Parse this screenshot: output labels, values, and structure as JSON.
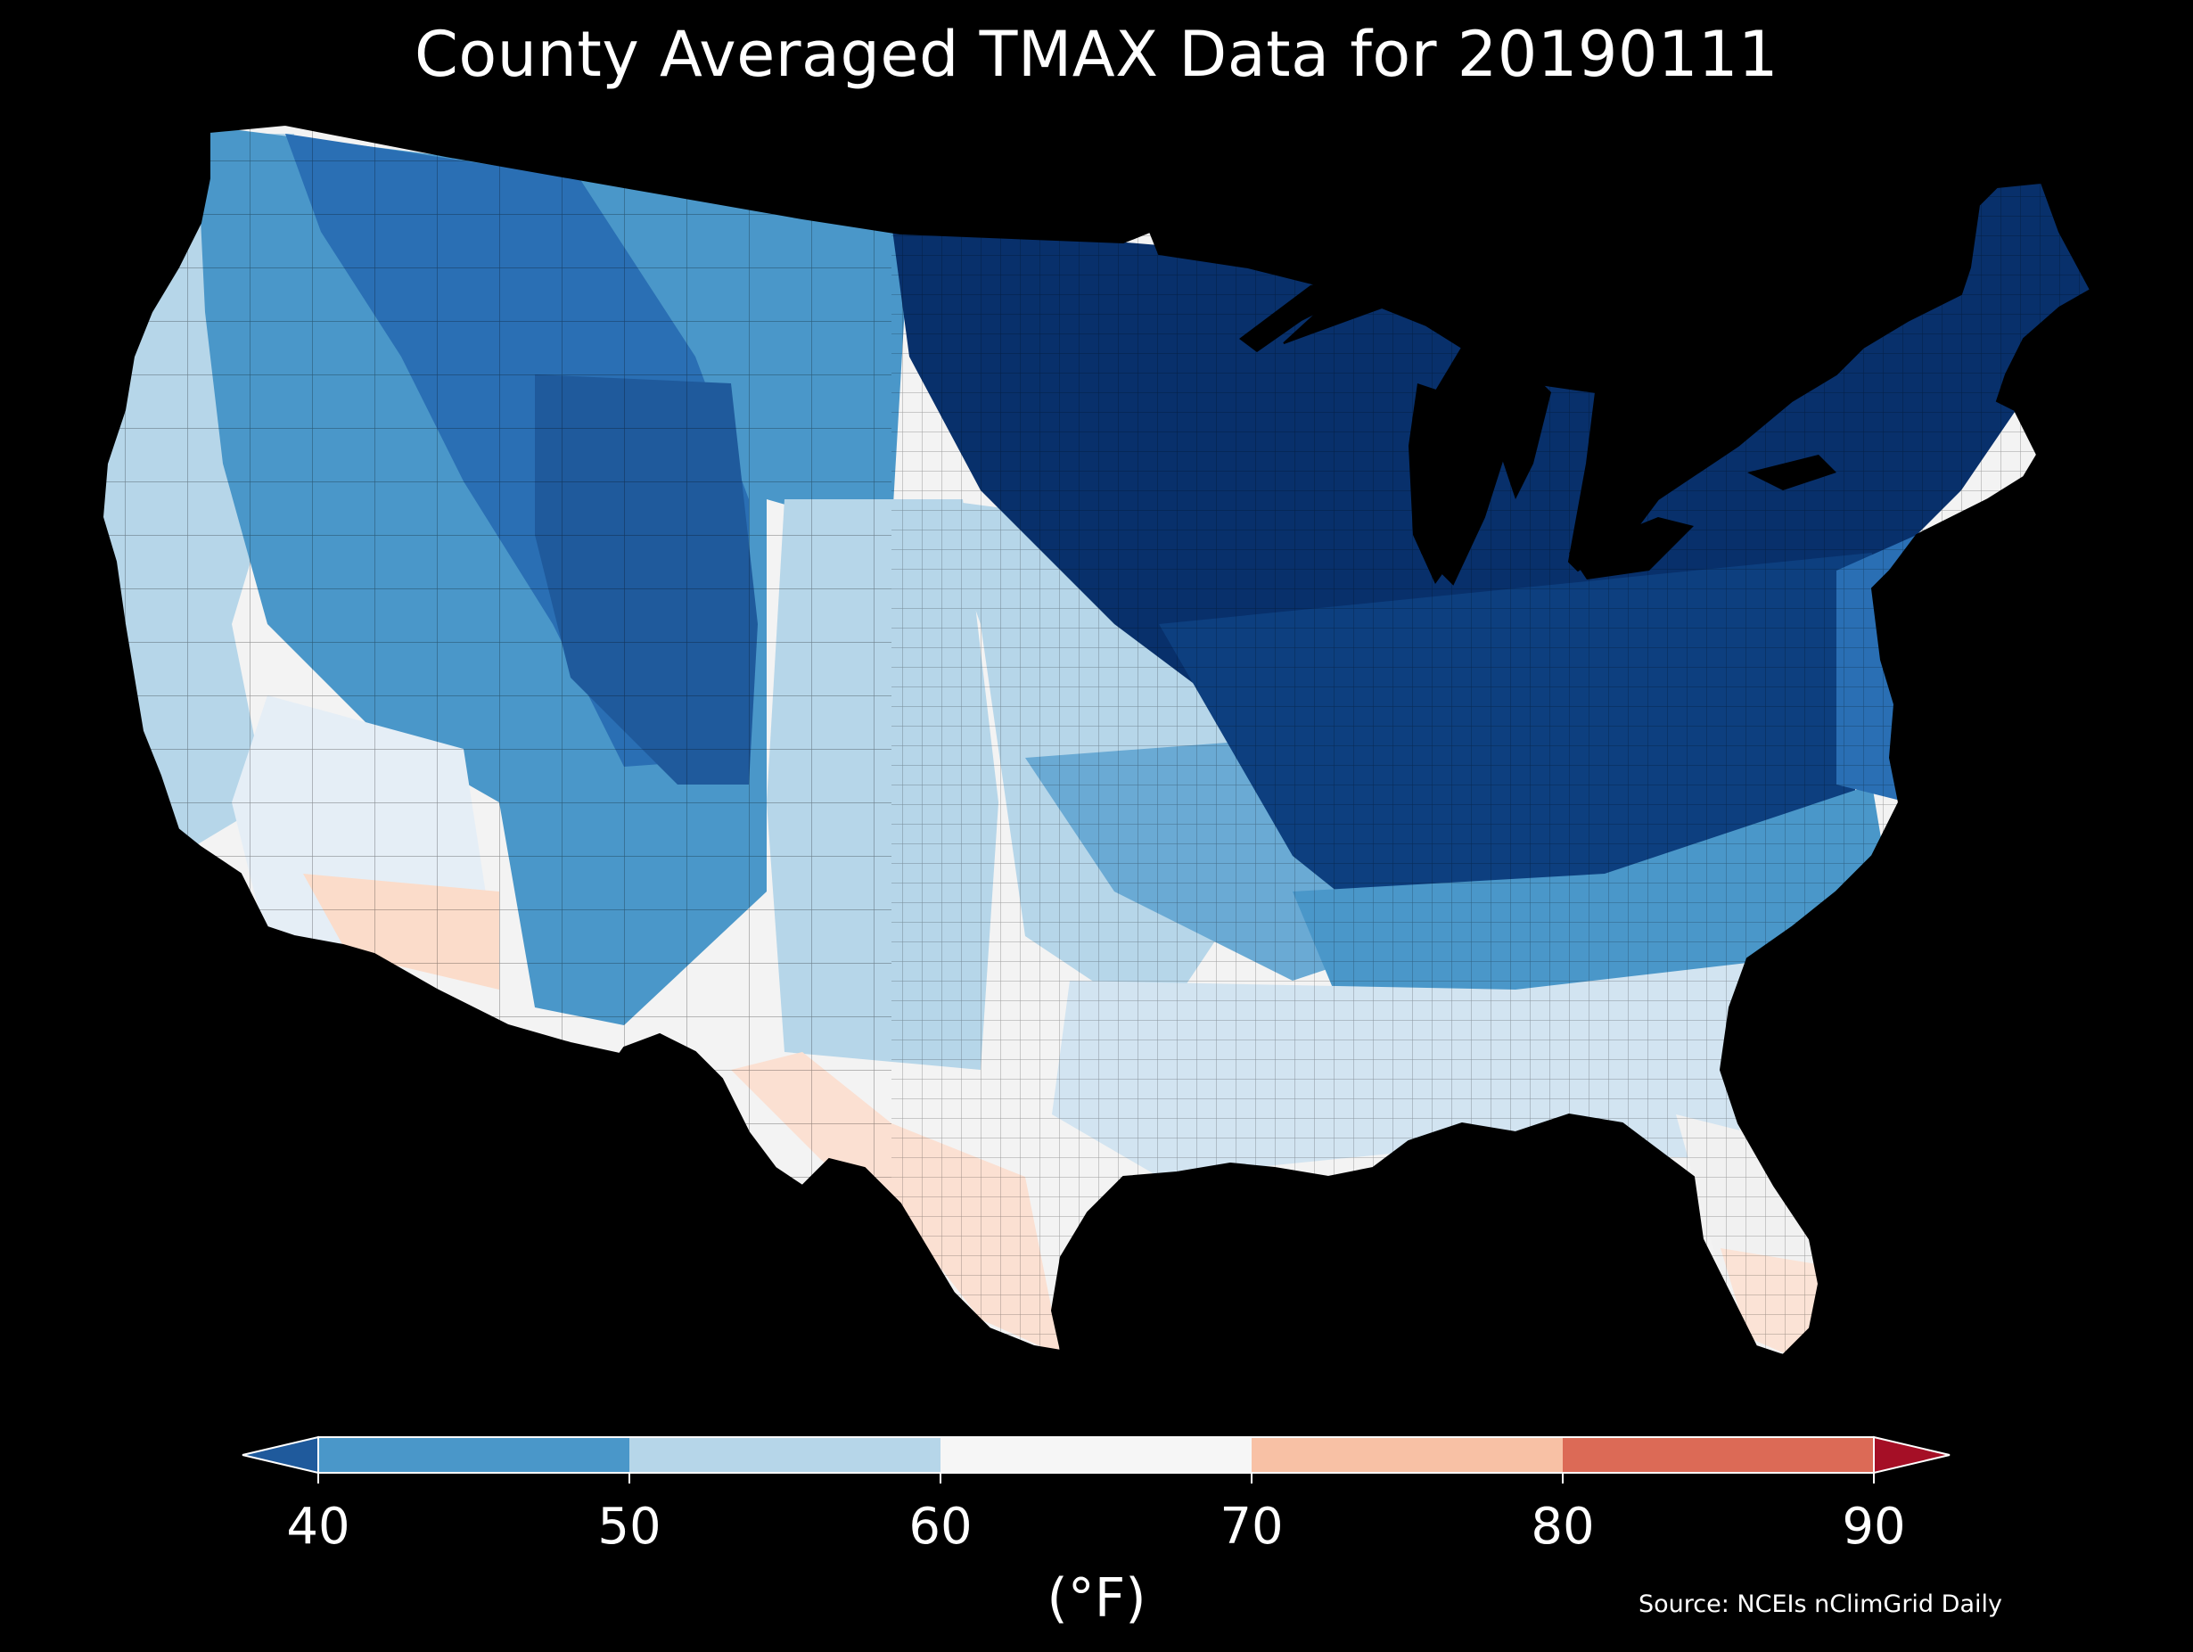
{
  "title": "County Averaged TMAX Data for 20190111",
  "source": "Source: NCEIs nClimGrid Daily",
  "colorbar": {
    "unit": "(°F)",
    "ticks": [
      "40",
      "50",
      "60",
      "70",
      "80",
      "90"
    ],
    "bins": [
      {
        "range": "<40",
        "color": "#1f5a9c"
      },
      {
        "range": "40-50",
        "color": "#4a97c9"
      },
      {
        "range": "50-60",
        "color": "#b6d6e9"
      },
      {
        "range": "60-70",
        "color": "#f6f6f6"
      },
      {
        "range": "70-80",
        "color": "#f8c1a5"
      },
      {
        "range": "80-90",
        "color": "#dc6a56"
      },
      {
        "range": ">90",
        "color": "#a50f26"
      }
    ]
  },
  "map_colors": {
    "background": "#000000",
    "darkest": "#08306b",
    "dark": "#1f5a9c",
    "mid": "#4a97c9",
    "light": "#b6d6e9",
    "pale": "#e5eef6",
    "neutral": "#f3f3f3",
    "warm": "#fbd9c6"
  }
}
